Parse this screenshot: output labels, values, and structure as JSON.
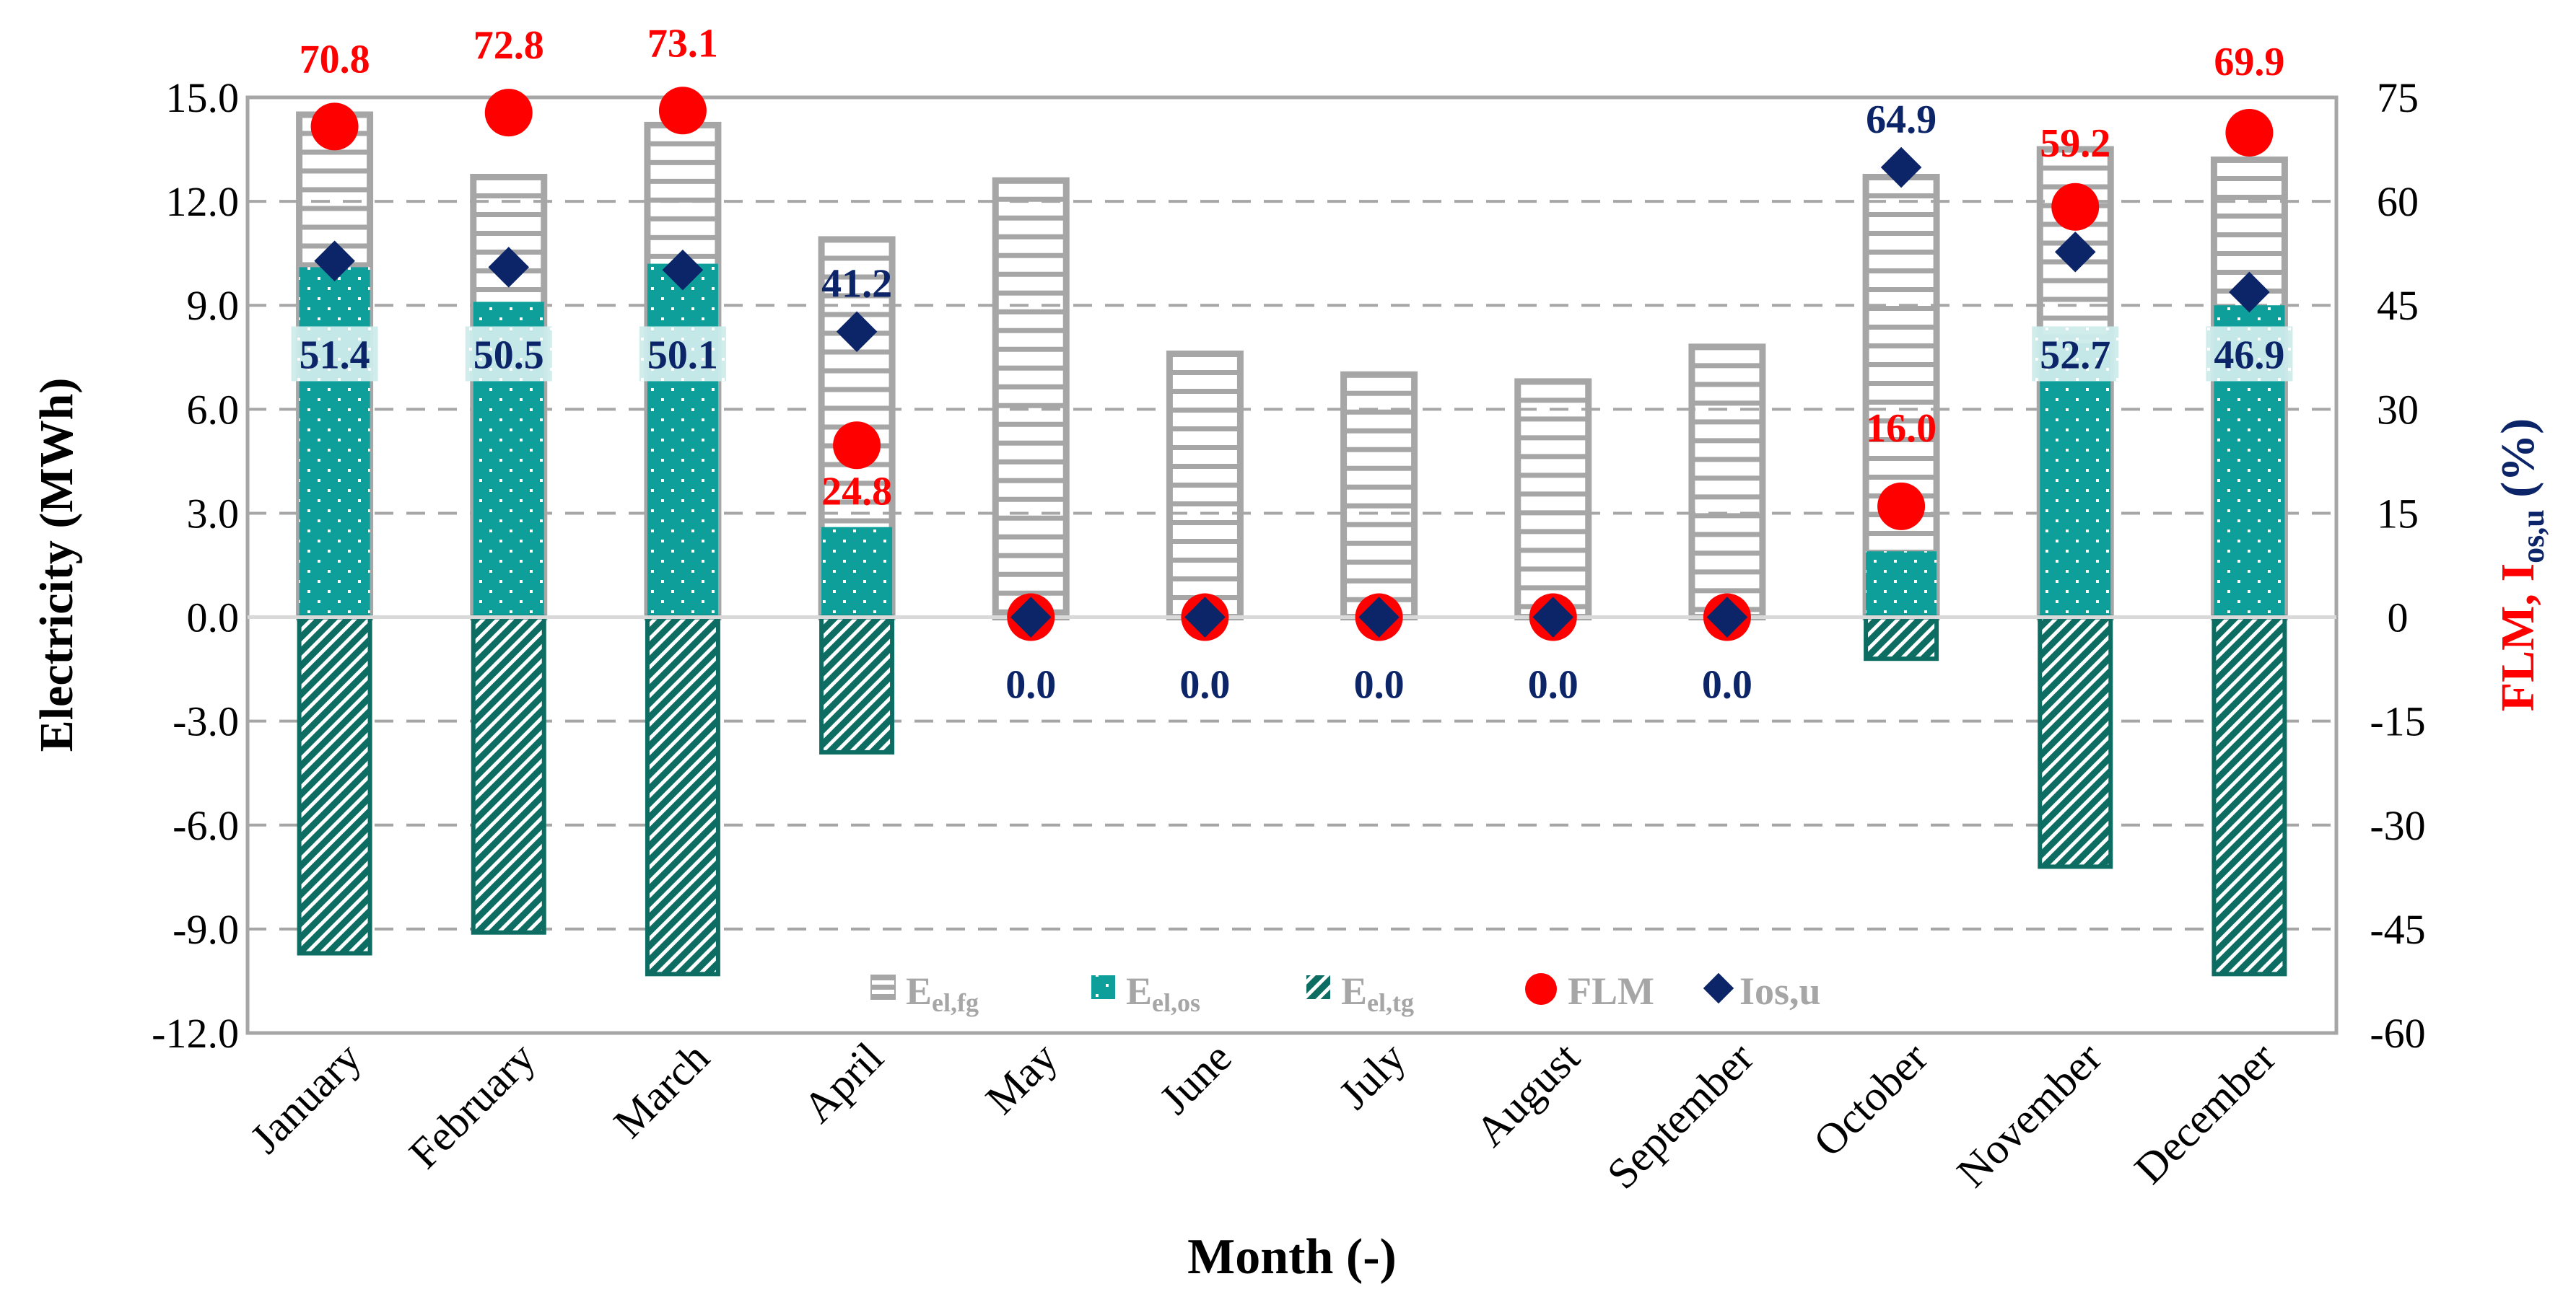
{
  "chart_data": {
    "type": "bar",
    "title": "",
    "xlabel": "Month (-)",
    "ylabel": "Electricity (MWh)",
    "y2label_main": "FLM, I",
    "y2label_sub": "os,u",
    "y2label_unit": " (%)",
    "ylim": [
      -12,
      15
    ],
    "y2lim": [
      -60,
      75
    ],
    "yticks": [
      "15.0",
      "12.0",
      "9.0",
      "6.0",
      "3.0",
      "0.0",
      "-3.0",
      "-6.0",
      "-9.0",
      "-12.0"
    ],
    "y2ticks": [
      "75",
      "60",
      "45",
      "30",
      "15",
      "0",
      "-15",
      "-30",
      "-45",
      "-60"
    ],
    "categories": [
      "January",
      "February",
      "March",
      "April",
      "May",
      "June",
      "July",
      "August",
      "September",
      "October",
      "November",
      "December"
    ],
    "series": [
      {
        "name": "E",
        "sub": "el,fg",
        "kind": "bar",
        "values": [
          14.5,
          12.7,
          14.2,
          10.9,
          12.6,
          7.6,
          7.0,
          6.8,
          7.8,
          12.7,
          13.5,
          13.2
        ]
      },
      {
        "name": "E",
        "sub": "el,os",
        "kind": "bar",
        "values": [
          10.1,
          9.1,
          10.2,
          2.6,
          0.0,
          0.0,
          0.0,
          0.0,
          0.0,
          1.9,
          7.9,
          9.0
        ]
      },
      {
        "name": "E",
        "sub": "el,tg",
        "kind": "bar",
        "values": [
          -9.7,
          -9.1,
          -10.3,
          -3.9,
          0.0,
          0.0,
          0.0,
          0.0,
          0.0,
          -1.2,
          -7.2,
          -10.3
        ]
      },
      {
        "name": "FLM",
        "sub": "",
        "kind": "point",
        "values": [
          70.8,
          72.8,
          73.1,
          24.8,
          0.0,
          0.0,
          0.0,
          0.0,
          0.0,
          16.0,
          59.2,
          69.9
        ]
      },
      {
        "name": "Ios,u",
        "sub": "",
        "kind": "point",
        "values": [
          51.4,
          50.5,
          50.1,
          41.2,
          0.0,
          0.0,
          0.0,
          0.0,
          0.0,
          64.9,
          52.7,
          46.9
        ]
      }
    ],
    "flm_labels": [
      "70.8",
      "72.8",
      "73.1",
      "24.8",
      "",
      "",
      "",
      "",
      "",
      "16.0",
      "59.2",
      "69.9"
    ],
    "ios_labels": [
      "51.4",
      "50.5",
      "50.1",
      "41.2",
      "0.0",
      "0.0",
      "0.0",
      "0.0",
      "0.0",
      "64.9",
      "52.7",
      "46.9"
    ],
    "legend_position": "bottom-center-inside",
    "grid": true,
    "colors": {
      "fg": "#a6a6a6",
      "os": "#0e9f9b",
      "os_band": "#cdeceb",
      "tg": "#0d6d62",
      "flm": "#ff0000",
      "ios": "#0c2468",
      "axis": "#a6a6a6",
      "text": "#000000",
      "grid": "#a6a6a6"
    }
  }
}
